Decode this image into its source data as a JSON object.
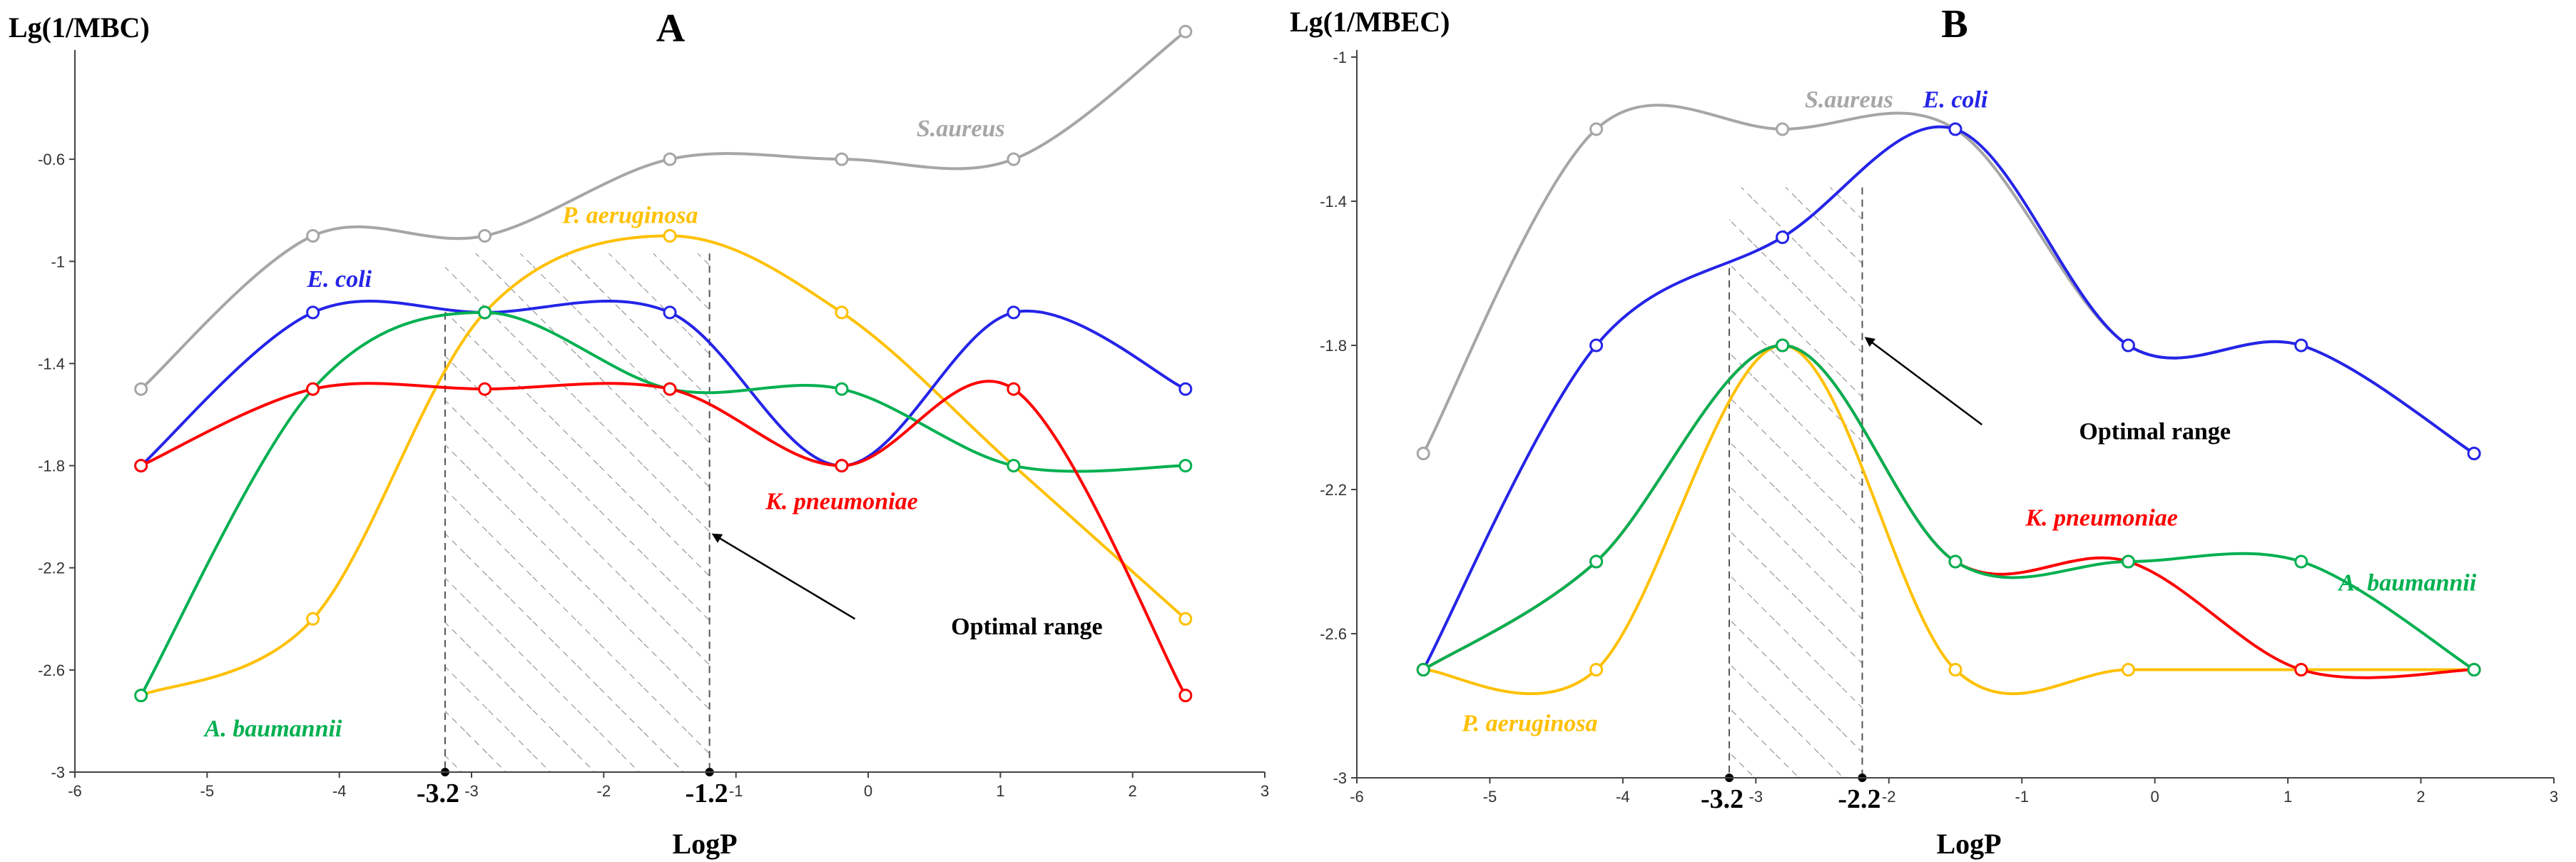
{
  "chart_data": [
    {
      "type": "line",
      "panel": "A",
      "title": "A",
      "ylabel": "Lg(1/MBC)",
      "xlabel": "LogP",
      "xlim": [
        -6,
        3
      ],
      "ylim": [
        -3,
        -0.2
      ],
      "xticks": [
        -6,
        -5,
        -4,
        -3,
        -2,
        -1,
        0,
        1,
        2,
        3
      ],
      "yticks": [
        -0.6,
        -1,
        -1.4,
        -1.8,
        -2.2,
        -2.6,
        -3
      ],
      "x": [
        -5.5,
        -4.2,
        -2.9,
        -1.5,
        -0.2,
        1.1,
        2.4
      ],
      "series": [
        {
          "name": "S.aureus",
          "color": "#a6a6a6",
          "values": [
            -1.5,
            -0.9,
            -0.9,
            -0.6,
            -0.6,
            -0.6,
            -0.1
          ],
          "label_text": "S.aureus",
          "label_at": [
            0.7,
            -0.51
          ]
        },
        {
          "name": "P. aeruginosa",
          "color": "#ffc000",
          "values": [
            -2.7,
            -2.4,
            -1.2,
            -0.9,
            -1.2,
            -1.8,
            -2.4
          ],
          "label_text": "P. aeruginosa",
          "label_at": [
            -1.8,
            -0.85
          ]
        },
        {
          "name": "E. coli",
          "color": "#2424e8",
          "values": [
            -1.8,
            -1.2,
            -1.2,
            -1.2,
            -1.8,
            -1.2,
            -1.5
          ],
          "label_text": "E. coli",
          "label_at": [
            -4.0,
            -1.1
          ]
        },
        {
          "name": "A. baumannii",
          "color": "#00b050",
          "values": [
            -2.7,
            -1.5,
            -1.2,
            -1.5,
            -1.5,
            -1.8,
            -1.8
          ],
          "label_text": "A. baumannii",
          "label_at": [
            -4.5,
            -2.86
          ]
        },
        {
          "name": "K. pneumoniae",
          "color": "#ff0000",
          "values": [
            -1.8,
            -1.5,
            -1.5,
            -1.5,
            -1.8,
            -1.5,
            -2.7
          ],
          "label_text": "K. pneumoniae",
          "label_at": [
            -0.2,
            -1.97
          ]
        }
      ],
      "optimal_range": {
        "from": -3.2,
        "to": -1.2,
        "label": "Optimal range",
        "from_label": "-3.2",
        "to_label": "-1.2"
      },
      "annotation": {
        "text": "Optimal range",
        "text_at": [
          1.2,
          -2.46
        ],
        "arrow_to": [
          -1.17,
          -2.07
        ],
        "arrow_from": [
          -0.1,
          -2.4
        ]
      }
    },
    {
      "type": "line",
      "panel": "B",
      "title": "B",
      "ylabel": "Lg(1/MBEC)",
      "xlabel": "LogP",
      "xlim": [
        -6,
        3
      ],
      "ylim": [
        -3,
        -1
      ],
      "xticks": [
        -6,
        -5,
        -4,
        -3,
        -2,
        -1,
        0,
        1,
        2,
        3
      ],
      "yticks": [
        -1,
        -1.4,
        -1.8,
        -2.2,
        -2.6,
        -3
      ],
      "x": [
        -5.5,
        -4.2,
        -2.8,
        -1.5,
        -0.2,
        1.1,
        2.4
      ],
      "series": [
        {
          "name": "S.aureus",
          "color": "#a6a6a6",
          "values": [
            -2.1,
            -1.2,
            -1.2,
            -1.2,
            -1.8,
            -1.8,
            -2.1
          ],
          "label_text": "S.aureus",
          "label_at": [
            -2.3,
            -1.14
          ]
        },
        {
          "name": "E. coli",
          "color": "#2424e8",
          "values": [
            -2.7,
            -1.8,
            -1.5,
            -1.2,
            -1.8,
            -1.8,
            -2.1
          ],
          "label_text": "E. coli",
          "label_at": [
            -1.5,
            -1.14
          ]
        },
        {
          "name": "P. aeruginosa",
          "color": "#ffc000",
          "values": [
            -2.7,
            -2.7,
            -1.8,
            -2.7,
            -2.7,
            -2.7,
            -2.7
          ],
          "label_text": "P. aeruginosa",
          "label_at": [
            -4.7,
            -2.87
          ]
        },
        {
          "name": "K. pneumoniae",
          "color": "#ff0000",
          "values": [
            -2.7,
            -2.4,
            -1.8,
            -2.4,
            -2.4,
            -2.7,
            -2.7
          ],
          "label_text": "K. pneumoniae",
          "label_at": [
            -0.4,
            -2.3
          ]
        },
        {
          "name": "A. baumannii",
          "color": "#00b050",
          "values": [
            -2.7,
            -2.4,
            -1.8,
            -2.4,
            -2.4,
            -2.4,
            -2.7
          ],
          "label_text": "A. baumannii",
          "label_at": [
            1.9,
            -2.48
          ]
        }
      ],
      "optimal_range": {
        "from": -3.2,
        "to": -2.2,
        "label": "Optimal range",
        "from_label": "-3.2",
        "to_label": "-2.2"
      },
      "annotation": {
        "text": "Optimal range",
        "text_at": [
          0.0,
          -2.06
        ],
        "arrow_to": [
          -2.17,
          -1.78
        ],
        "arrow_from": [
          -1.3,
          -2.02
        ]
      }
    }
  ]
}
